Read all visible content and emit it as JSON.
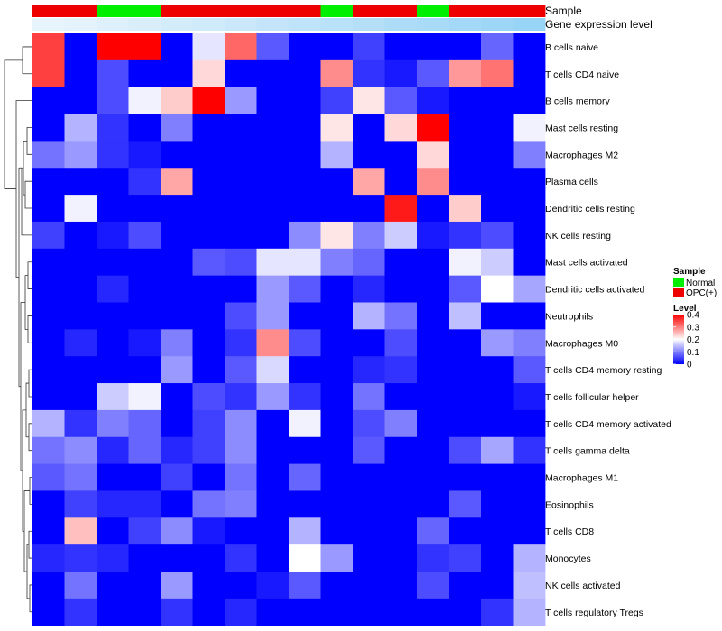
{
  "chart_data": {
    "type": "heatmap",
    "annotation_labels": {
      "sample": "Sample",
      "gene_expression": "Gene expression level"
    },
    "rows": [
      "B cells naive",
      "T cells CD4 naive",
      "B cells memory",
      "Mast cells resting",
      "Macrophages M2",
      "Plasma cells",
      "Dendritic cells resting",
      "NK cells resting",
      "Mast cells activated",
      "Dendritic cells activated",
      "Neutrophils",
      "Macrophages M0",
      "T cells CD4 memory resting",
      "T cells follicular helper",
      "T cells CD4 memory activated",
      "T cells gamma delta",
      "Macrophages M1",
      "Eosinophils",
      "T cells CD8",
      "Monocytes",
      "NK cells activated",
      "T cells regulatory  Tregs"
    ],
    "sample_groups": [
      "OPC(+)",
      "OPC(+)",
      "Normal",
      "Normal",
      "OPC(+)",
      "OPC(+)",
      "OPC(+)",
      "OPC(+)",
      "OPC(+)",
      "Normal",
      "OPC(+)",
      "OPC(+)",
      "Normal",
      "OPC(+)",
      "OPC(+)",
      "OPC(+)"
    ],
    "gene_expression_level": [
      0.02,
      0.05,
      0.08,
      0.11,
      0.15,
      0.18,
      0.21,
      0.25,
      0.28,
      0.32,
      0.35,
      0.39,
      0.42,
      0.46,
      0.49,
      0.53
    ],
    "values": [
      [
        0.35,
        0,
        0.4,
        0.4,
        0,
        0.18,
        0.32,
        0.07,
        0,
        0,
        0.05,
        0,
        0,
        0,
        0.08,
        0
      ],
      [
        0.35,
        0,
        0.06,
        0,
        0,
        0.23,
        0,
        0,
        0,
        0.29,
        0.04,
        0.02,
        0.07,
        0.28,
        0.31,
        0
      ],
      [
        0,
        0,
        0.06,
        0.19,
        0.24,
        0.4,
        0.12,
        0,
        0,
        0.05,
        0.22,
        0.07,
        0.02,
        0,
        0,
        0
      ],
      [
        0,
        0.14,
        0.04,
        0,
        0.1,
        0,
        0,
        0,
        0,
        0.22,
        0,
        0.23,
        0.4,
        0,
        0,
        0.19
      ],
      [
        0.09,
        0.12,
        0.04,
        0.02,
        0,
        0,
        0,
        0,
        0,
        0.14,
        0,
        0,
        0.23,
        0,
        0,
        0.1
      ],
      [
        0,
        0,
        0,
        0.04,
        0.27,
        0,
        0,
        0,
        0,
        0,
        0.27,
        0,
        0.29,
        0,
        0,
        0
      ],
      [
        0,
        0.19,
        0,
        0,
        0,
        0,
        0,
        0,
        0,
        0,
        0,
        0.38,
        0,
        0.24,
        0,
        0
      ],
      [
        0.05,
        0,
        0.02,
        0.06,
        0,
        0,
        0,
        0,
        0.11,
        0.22,
        0.1,
        0.16,
        0.02,
        0.04,
        0.06,
        0
      ],
      [
        0,
        0,
        0,
        0,
        0,
        0.07,
        0.06,
        0.18,
        0.18,
        0.1,
        0.08,
        0,
        0,
        0.19,
        0.16,
        0
      ],
      [
        0,
        0,
        0.03,
        0,
        0,
        0,
        0,
        0.12,
        0.07,
        0,
        0.03,
        0,
        0,
        0.07,
        0.2,
        0.13
      ],
      [
        0,
        0,
        0,
        0,
        0,
        0,
        0.06,
        0.12,
        0,
        0,
        0.14,
        0.09,
        0,
        0.15,
        0,
        0
      ],
      [
        0,
        0.03,
        0,
        0.02,
        0.1,
        0,
        0.04,
        0.29,
        0.06,
        0,
        0,
        0.06,
        0,
        0,
        0.12,
        0.1
      ],
      [
        0,
        0,
        0,
        0,
        0.12,
        0,
        0.07,
        0.17,
        0,
        0,
        0.03,
        0.04,
        0,
        0,
        0,
        0.07
      ],
      [
        0,
        0,
        0.16,
        0.19,
        0,
        0.06,
        0.04,
        0.12,
        0.04,
        0,
        0.09,
        0,
        0,
        0,
        0,
        0.02
      ],
      [
        0.14,
        0.04,
        0.1,
        0.08,
        0,
        0.05,
        0.11,
        0,
        0.19,
        0,
        0.06,
        0.1,
        0,
        0,
        0,
        0
      ],
      [
        0.09,
        0.11,
        0.03,
        0.08,
        0.03,
        0.05,
        0.11,
        0,
        0,
        0,
        0.07,
        0,
        0,
        0.06,
        0.13,
        0.04
      ],
      [
        0.07,
        0.09,
        0,
        0,
        0.05,
        0,
        0.09,
        0,
        0.08,
        0,
        0,
        0,
        0,
        0,
        0,
        0
      ],
      [
        0,
        0.05,
        0.03,
        0.03,
        0,
        0.09,
        0.1,
        0,
        0,
        0,
        0,
        0,
        0,
        0.07,
        0,
        0
      ],
      [
        0,
        0.25,
        0,
        0.05,
        0.11,
        0.02,
        0,
        0,
        0.14,
        0,
        0,
        0,
        0.08,
        0,
        0,
        0
      ],
      [
        0.03,
        0.04,
        0.03,
        0,
        0,
        0,
        0.04,
        0,
        0.2,
        0.12,
        0,
        0,
        0.04,
        0.05,
        0,
        0.14
      ],
      [
        0,
        0.09,
        0,
        0,
        0.12,
        0,
        0,
        0.02,
        0.07,
        0,
        0,
        0,
        0.06,
        0,
        0,
        0.15
      ],
      [
        0,
        0.04,
        0,
        0,
        0.04,
        0,
        0.03,
        0,
        0,
        0,
        0,
        0,
        0,
        0,
        0.04,
        0.14
      ]
    ],
    "legend_sample": {
      "title": "Sample",
      "items": [
        {
          "label": "Normal",
          "color": "#00ee00"
        },
        {
          "label": "OPC(+)",
          "color": "#ee0000"
        }
      ]
    },
    "legend_level": {
      "title": "Level",
      "ticks": [
        "0",
        "0.1",
        "0.2",
        "0.3",
        "0.4"
      ],
      "range": [
        0,
        0.4
      ],
      "colors": [
        "#0000ff",
        "#ffffff",
        "#ff0000"
      ]
    },
    "legend_placement": "right",
    "dendrogram": "rows-left"
  }
}
